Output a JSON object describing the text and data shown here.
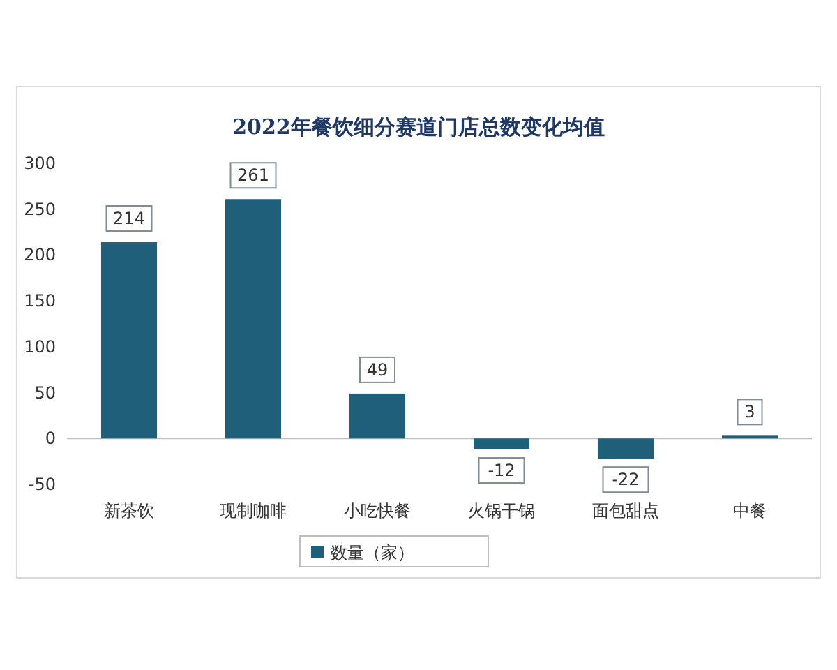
{
  "chart_data": {
    "type": "bar",
    "title": "2022年餐饮细分赛道门店总数变化均值",
    "categories": [
      "新茶饮",
      "现制咖啡",
      "小吃快餐",
      "火锅干锅",
      "面包甜点",
      "中餐"
    ],
    "series": [
      {
        "name": "数量（家）",
        "color": "#1f5f7a",
        "values": [
          214,
          261,
          49,
          -12,
          -22,
          3
        ]
      }
    ],
    "ylim": [
      -50,
      300
    ],
    "yticks": [
      -50,
      0,
      50,
      100,
      150,
      200,
      250,
      300
    ],
    "data_labels": true,
    "legend": "bottom"
  }
}
